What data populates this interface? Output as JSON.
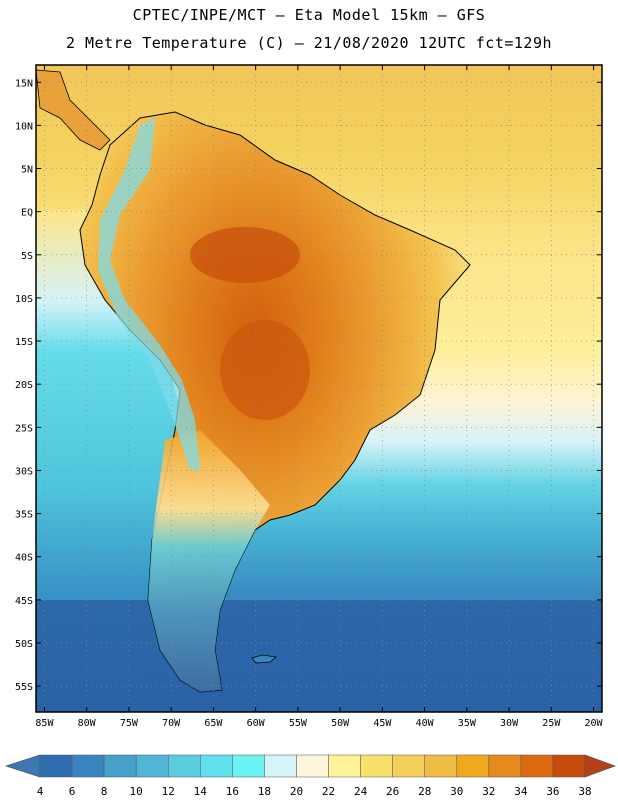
{
  "header": {
    "line1": "CPTEC/INPE/MCT –  Eta Model 15km – GFS",
    "line2": "2 Metre Temperature (C) – 21/08/2020 12UTC fct=129h"
  },
  "map": {
    "lon_range": [
      -86,
      -19
    ],
    "lat_range": [
      -58,
      17
    ],
    "lat_ticks": [
      {
        "value": 15,
        "label": "15N"
      },
      {
        "value": 10,
        "label": "10N"
      },
      {
        "value": 5,
        "label": "5N"
      },
      {
        "value": 0,
        "label": "EQ"
      },
      {
        "value": -5,
        "label": "5S"
      },
      {
        "value": -10,
        "label": "10S"
      },
      {
        "value": -15,
        "label": "15S"
      },
      {
        "value": -20,
        "label": "20S"
      },
      {
        "value": -25,
        "label": "25S"
      },
      {
        "value": -30,
        "label": "30S"
      },
      {
        "value": -35,
        "label": "35S"
      },
      {
        "value": -40,
        "label": "40S"
      },
      {
        "value": -45,
        "label": "45S"
      },
      {
        "value": -50,
        "label": "50S"
      },
      {
        "value": -55,
        "label": "55S"
      }
    ],
    "lon_ticks": [
      {
        "value": -85,
        "label": "85W"
      },
      {
        "value": -80,
        "label": "80W"
      },
      {
        "value": -75,
        "label": "75W"
      },
      {
        "value": -70,
        "label": "70W"
      },
      {
        "value": -65,
        "label": "65W"
      },
      {
        "value": -60,
        "label": "60W"
      },
      {
        "value": -55,
        "label": "55W"
      },
      {
        "value": -50,
        "label": "50W"
      },
      {
        "value": -45,
        "label": "45W"
      },
      {
        "value": -40,
        "label": "40W"
      },
      {
        "value": -35,
        "label": "35W"
      },
      {
        "value": -30,
        "label": "30W"
      },
      {
        "value": -25,
        "label": "25W"
      },
      {
        "value": -20,
        "label": "20W"
      }
    ]
  },
  "colorbar": {
    "labels": [
      "4",
      "6",
      "8",
      "10",
      "12",
      "14",
      "16",
      "18",
      "20",
      "22",
      "24",
      "26",
      "28",
      "30",
      "32",
      "34",
      "36",
      "38"
    ],
    "low_color": "#3a78b4",
    "high_color": "#b3401a",
    "colors": [
      "#2e6db0",
      "#3a84c0",
      "#45a0cc",
      "#50b7d8",
      "#59cce0",
      "#60e0ea",
      "#6cf3f4",
      "#d5f5fa",
      "#fff5dd",
      "#fff39a",
      "#f9e06a",
      "#f4cf5c",
      "#efbc45",
      "#f0a81c",
      "#e78a1c",
      "#de6a10",
      "#c64a0a"
    ]
  }
}
